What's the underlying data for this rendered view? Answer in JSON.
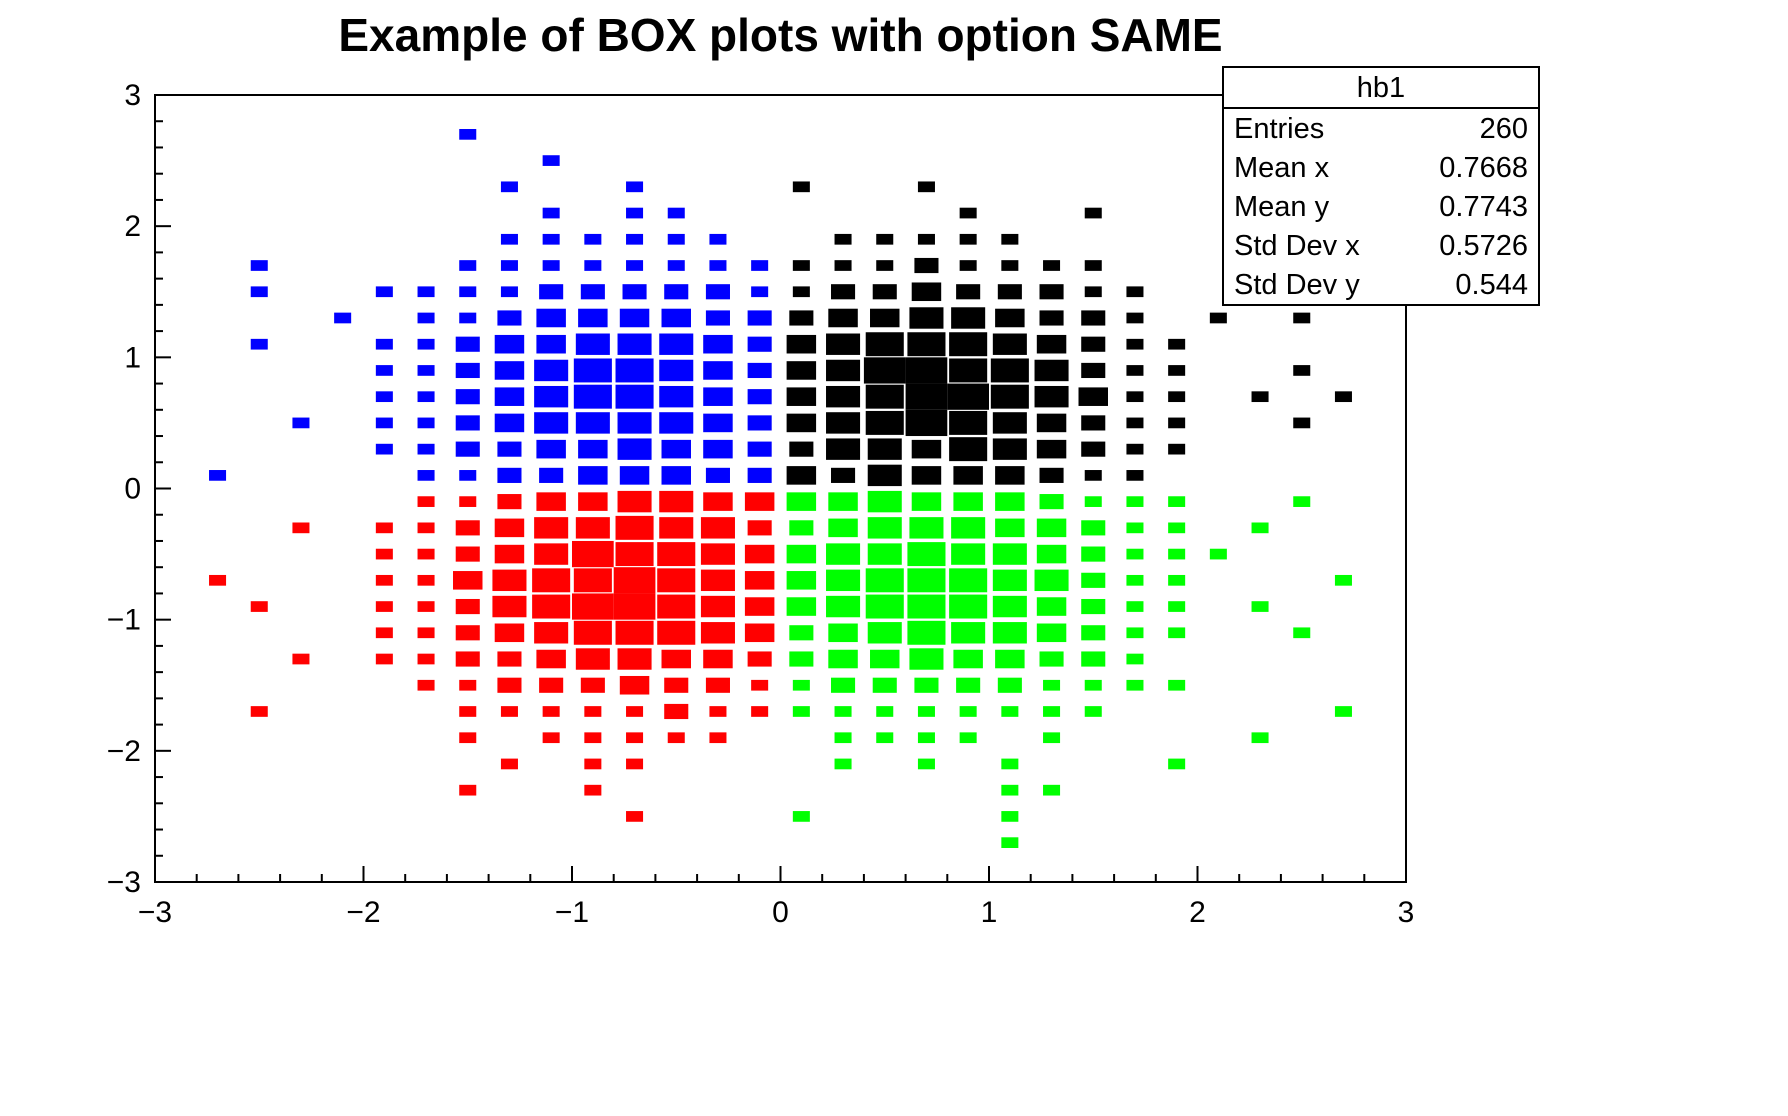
{
  "chart_data": {
    "type": "heatmap",
    "style": "root-box-2d-histogram",
    "title": "Example of BOX plots with option SAME",
    "xlabel": "",
    "ylabel": "",
    "xlim": [
      -3,
      3
    ],
    "ylim": [
      -3,
      3
    ],
    "x_tick_values": [
      -3,
      -2,
      -1,
      0,
      1,
      2,
      3
    ],
    "x_tick_labels": [
      "−3",
      "−2",
      "−1",
      "0",
      "1",
      "2",
      "3"
    ],
    "y_tick_values": [
      -3,
      -2,
      -1,
      0,
      1,
      2,
      3
    ],
    "y_tick_labels": [
      "−3",
      "−2",
      "−1",
      "0",
      "1",
      "2",
      "3"
    ],
    "minor_tick_step": 0.2,
    "bin_size": 0.2,
    "max_count": 6,
    "grid": false,
    "legend": "none",
    "series": [
      {
        "name": "blue-upper-left",
        "color": "#0000ff",
        "x_sign": -1,
        "y_sign": 1,
        "counts": [
          [
            2,
            2,
            3,
            3,
            3,
            2,
            2,
            1,
            1,
            0,
            0,
            0,
            0,
            1
          ],
          [
            2,
            3,
            3,
            4,
            3,
            3,
            2,
            2,
            1,
            1,
            0,
            0,
            0,
            0
          ],
          [
            2,
            3,
            4,
            4,
            4,
            4,
            3,
            2,
            1,
            1,
            0,
            1,
            0,
            0
          ],
          [
            2,
            3,
            4,
            5,
            5,
            4,
            3,
            2,
            1,
            1,
            0,
            0,
            0,
            0
          ],
          [
            2,
            3,
            4,
            5,
            5,
            4,
            3,
            2,
            1,
            1,
            0,
            0,
            0,
            0
          ],
          [
            2,
            3,
            4,
            4,
            4,
            3,
            3,
            2,
            1,
            1,
            0,
            0,
            1,
            0
          ],
          [
            2,
            2,
            3,
            3,
            3,
            3,
            2,
            1,
            1,
            0,
            1,
            0,
            0,
            0
          ],
          [
            1,
            2,
            2,
            2,
            2,
            2,
            1,
            1,
            1,
            1,
            0,
            0,
            1,
            0
          ],
          [
            1,
            1,
            1,
            1,
            1,
            1,
            1,
            1,
            0,
            0,
            0,
            0,
            1,
            0
          ],
          [
            0,
            1,
            1,
            1,
            1,
            1,
            1,
            0,
            0,
            0,
            0,
            0,
            0,
            0
          ],
          [
            0,
            0,
            1,
            1,
            0,
            1,
            0,
            0,
            0,
            0,
            0,
            0,
            0,
            0
          ],
          [
            0,
            0,
            0,
            1,
            0,
            0,
            1,
            0,
            0,
            0,
            0,
            0,
            0,
            0
          ],
          [
            0,
            0,
            0,
            0,
            0,
            1,
            0,
            0,
            0,
            0,
            0,
            0,
            0,
            0
          ],
          [
            0,
            0,
            0,
            0,
            0,
            0,
            0,
            1,
            0,
            0,
            0,
            0,
            0,
            0
          ]
        ]
      },
      {
        "name": "red-lower-left",
        "color": "#ff0000",
        "x_sign": -1,
        "y_sign": -1,
        "counts": [
          [
            3,
            3,
            4,
            4,
            3,
            3,
            2,
            1,
            1,
            0,
            0,
            0,
            0,
            0
          ],
          [
            2,
            4,
            4,
            5,
            4,
            4,
            3,
            2,
            1,
            1,
            0,
            1,
            0,
            0
          ],
          [
            3,
            4,
            5,
            5,
            6,
            4,
            3,
            2,
            1,
            1,
            0,
            0,
            0,
            0
          ],
          [
            3,
            4,
            5,
            6,
            5,
            5,
            4,
            3,
            1,
            1,
            0,
            0,
            0,
            1
          ],
          [
            3,
            4,
            5,
            6,
            6,
            5,
            4,
            2,
            1,
            1,
            0,
            0,
            1,
            0
          ],
          [
            3,
            4,
            5,
            5,
            5,
            4,
            3,
            2,
            1,
            1,
            0,
            0,
            0,
            0
          ],
          [
            2,
            3,
            3,
            4,
            4,
            3,
            2,
            2,
            1,
            1,
            0,
            1,
            0,
            0
          ],
          [
            1,
            2,
            2,
            3,
            2,
            2,
            2,
            1,
            1,
            0,
            0,
            0,
            0,
            0
          ],
          [
            1,
            1,
            2,
            1,
            1,
            1,
            1,
            1,
            0,
            0,
            0,
            0,
            1,
            0
          ],
          [
            0,
            1,
            1,
            1,
            1,
            1,
            0,
            1,
            0,
            0,
            0,
            0,
            0,
            0
          ],
          [
            0,
            0,
            0,
            1,
            1,
            0,
            1,
            0,
            0,
            0,
            0,
            0,
            0,
            0
          ],
          [
            0,
            0,
            0,
            0,
            1,
            0,
            0,
            1,
            0,
            0,
            0,
            0,
            0,
            0
          ],
          [
            0,
            0,
            0,
            1,
            0,
            0,
            0,
            0,
            0,
            0,
            0,
            0,
            0,
            0
          ],
          [
            0,
            0,
            0,
            0,
            0,
            0,
            0,
            0,
            0,
            0,
            0,
            0,
            0,
            0
          ]
        ]
      },
      {
        "name": "green-lower-right",
        "color": "#00ff00",
        "x_sign": 1,
        "y_sign": -1,
        "counts": [
          [
            3,
            3,
            4,
            3,
            3,
            3,
            2,
            1,
            1,
            1,
            0,
            0,
            1,
            0
          ],
          [
            2,
            3,
            4,
            4,
            4,
            3,
            3,
            2,
            1,
            1,
            0,
            1,
            0,
            0
          ],
          [
            3,
            4,
            4,
            5,
            4,
            4,
            3,
            2,
            1,
            1,
            1,
            0,
            0,
            0
          ],
          [
            3,
            4,
            5,
            5,
            5,
            4,
            4,
            2,
            1,
            1,
            0,
            0,
            0,
            1
          ],
          [
            3,
            4,
            5,
            5,
            5,
            4,
            3,
            2,
            1,
            1,
            0,
            1,
            0,
            0
          ],
          [
            2,
            3,
            4,
            5,
            4,
            4,
            3,
            2,
            1,
            1,
            0,
            0,
            1,
            0
          ],
          [
            2,
            3,
            3,
            4,
            3,
            3,
            2,
            2,
            1,
            0,
            0,
            0,
            0,
            0
          ],
          [
            1,
            2,
            2,
            2,
            2,
            2,
            1,
            1,
            1,
            1,
            0,
            0,
            0,
            0
          ],
          [
            1,
            1,
            1,
            1,
            1,
            1,
            1,
            1,
            0,
            0,
            0,
            0,
            0,
            1
          ],
          [
            0,
            1,
            1,
            1,
            1,
            0,
            1,
            0,
            0,
            0,
            0,
            1,
            0,
            0
          ],
          [
            0,
            1,
            0,
            1,
            0,
            1,
            0,
            0,
            0,
            1,
            0,
            0,
            0,
            0
          ],
          [
            0,
            0,
            0,
            0,
            0,
            1,
            1,
            0,
            0,
            0,
            0,
            0,
            0,
            0
          ],
          [
            1,
            0,
            0,
            0,
            0,
            1,
            0,
            0,
            0,
            0,
            0,
            0,
            0,
            0
          ],
          [
            0,
            0,
            0,
            0,
            0,
            1,
            0,
            0,
            0,
            0,
            0,
            0,
            0,
            0
          ]
        ]
      },
      {
        "name": "hb1",
        "color": "#000000",
        "x_sign": 1,
        "y_sign": 1,
        "counts": [
          [
            3,
            2,
            4,
            3,
            3,
            3,
            2,
            1,
            1,
            0,
            0,
            0,
            0,
            0
          ],
          [
            2,
            4,
            4,
            3,
            5,
            4,
            3,
            2,
            1,
            1,
            0,
            0,
            0,
            0
          ],
          [
            3,
            4,
            5,
            6,
            5,
            4,
            3,
            2,
            1,
            1,
            0,
            0,
            1,
            0
          ],
          [
            3,
            4,
            5,
            6,
            6,
            5,
            4,
            3,
            1,
            1,
            0,
            1,
            0,
            1
          ],
          [
            3,
            4,
            6,
            6,
            5,
            5,
            4,
            2,
            1,
            1,
            0,
            0,
            1,
            0
          ],
          [
            3,
            4,
            5,
            5,
            5,
            4,
            3,
            2,
            1,
            1,
            0,
            0,
            0,
            0
          ],
          [
            2,
            3,
            3,
            4,
            4,
            3,
            2,
            2,
            1,
            0,
            1,
            0,
            1,
            0
          ],
          [
            1,
            2,
            2,
            3,
            2,
            2,
            2,
            1,
            1,
            0,
            0,
            0,
            0,
            0
          ],
          [
            1,
            1,
            1,
            2,
            1,
            1,
            1,
            1,
            0,
            0,
            0,
            0,
            0,
            0
          ],
          [
            0,
            1,
            1,
            1,
            1,
            1,
            0,
            0,
            0,
            0,
            0,
            0,
            0,
            0
          ],
          [
            0,
            0,
            0,
            0,
            1,
            0,
            0,
            1,
            0,
            0,
            0,
            0,
            0,
            0
          ],
          [
            1,
            0,
            0,
            1,
            0,
            0,
            0,
            0,
            0,
            0,
            0,
            0,
            0,
            0
          ],
          [
            0,
            0,
            0,
            0,
            0,
            0,
            0,
            0,
            0,
            0,
            0,
            0,
            0,
            0
          ],
          [
            0,
            0,
            0,
            0,
            0,
            0,
            0,
            0,
            0,
            0,
            0,
            0,
            0,
            0
          ]
        ]
      }
    ]
  },
  "stats_box": {
    "title": "hb1",
    "rows": [
      {
        "label": "Entries",
        "value": "260"
      },
      {
        "label": "Mean x",
        "value": "0.7668"
      },
      {
        "label": "Mean y",
        "value": "0.7743"
      },
      {
        "label": "Std Dev x",
        "value": "0.5726"
      },
      {
        "label": "Std Dev y",
        "value": "0.544"
      }
    ]
  }
}
